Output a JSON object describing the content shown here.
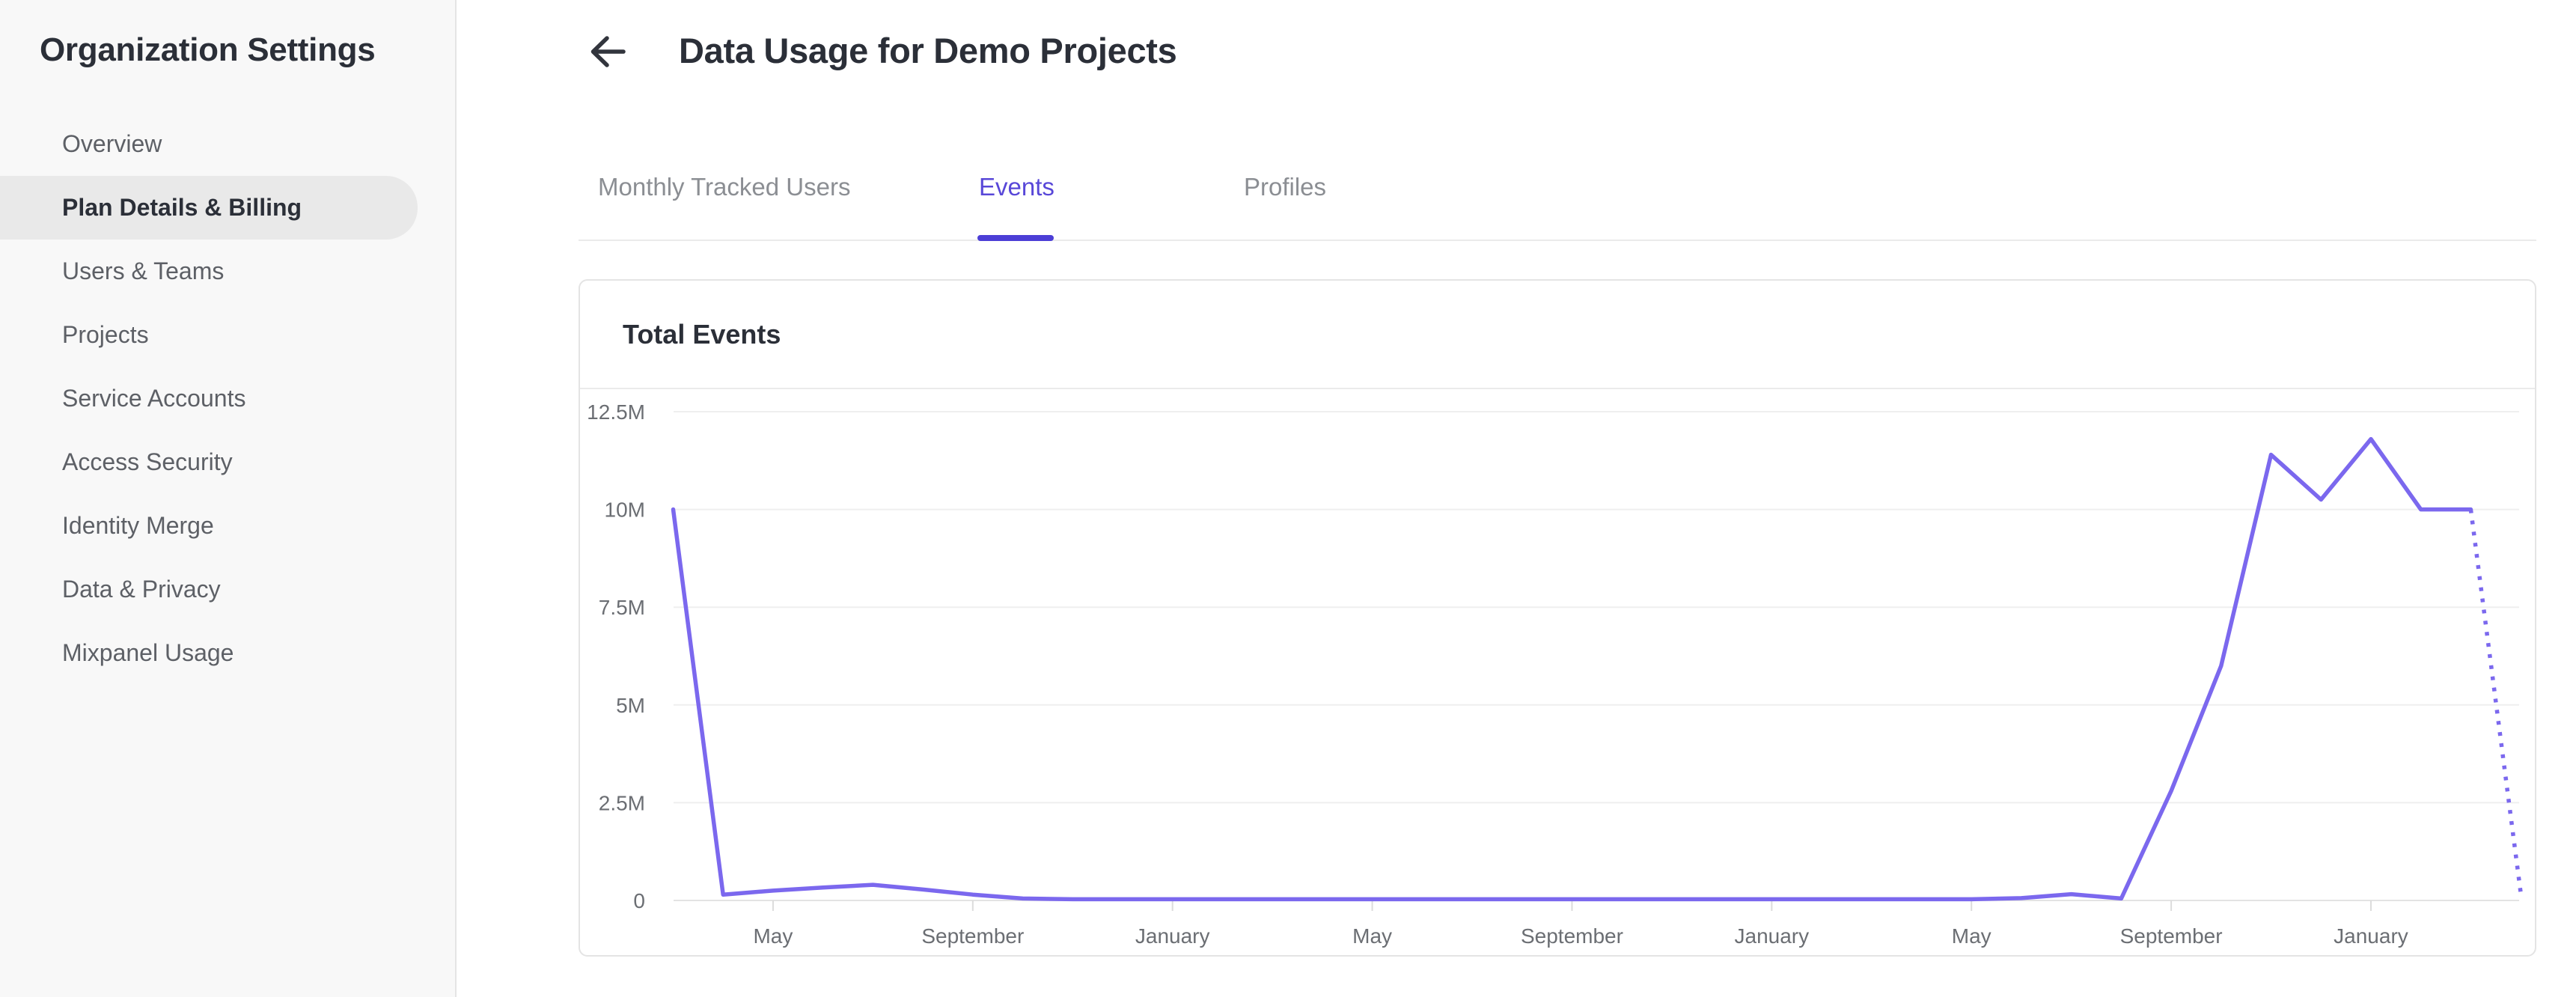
{
  "sidebar": {
    "title": "Organization Settings",
    "items": [
      {
        "label": "Overview",
        "active": false
      },
      {
        "label": "Plan Details & Billing",
        "active": true
      },
      {
        "label": "Users & Teams",
        "active": false
      },
      {
        "label": "Projects",
        "active": false
      },
      {
        "label": "Service Accounts",
        "active": false
      },
      {
        "label": "Access Security",
        "active": false
      },
      {
        "label": "Identity Merge",
        "active": false
      },
      {
        "label": "Data & Privacy",
        "active": false
      },
      {
        "label": "Mixpanel Usage",
        "active": false
      }
    ]
  },
  "header": {
    "title": "Data Usage for Demo Projects",
    "back_icon": "left-arrow"
  },
  "tabs": [
    {
      "label": "Monthly Tracked Users",
      "active": false
    },
    {
      "label": "Events",
      "active": true
    },
    {
      "label": "Profiles",
      "active": false
    }
  ],
  "card": {
    "title": "Total Events"
  },
  "colors": {
    "line": "#7b68ee",
    "tab_active_text": "#5847d8",
    "tab_underline": "#4c3ed6",
    "gridline": "#efefef",
    "baseline": "#e3e3e3",
    "tick": "#dcdcdc",
    "axis_label": "#6b6e73"
  },
  "chart_data": {
    "type": "line",
    "title": "Total Events",
    "x_unit": "month",
    "n_points": 38,
    "series": [
      {
        "name": "Total Events",
        "values_millions": [
          10,
          0.15,
          0.25,
          0.33,
          0.4,
          0.28,
          0.15,
          0.05,
          0.03,
          0.03,
          0.03,
          0.03,
          0.03,
          0.03,
          0.03,
          0.03,
          0.03,
          0.03,
          0.03,
          0.03,
          0.03,
          0.03,
          0.03,
          0.03,
          0.03,
          0.03,
          0.03,
          0.06,
          0.16,
          0.05,
          2.8,
          6.0,
          11.4,
          10.25,
          11.8,
          10.0,
          10.0,
          0.2
        ]
      }
    ],
    "dotted_from_index": 36,
    "x_tick_indices": [
      2,
      6,
      10,
      14,
      18,
      22,
      26,
      30,
      34
    ],
    "x_tick_labels": [
      "May",
      "September",
      "January",
      "May",
      "September",
      "January",
      "May",
      "September",
      "January"
    ],
    "y_ticks_millions": [
      12.5,
      10,
      7.5,
      5,
      2.5,
      0
    ],
    "y_tick_labels": [
      "12.5M",
      "10M",
      "7.5M",
      "5M",
      "2.5M",
      "0"
    ],
    "ylim_millions": [
      0,
      12.5
    ],
    "grid": "horizontal",
    "legend": "none"
  }
}
